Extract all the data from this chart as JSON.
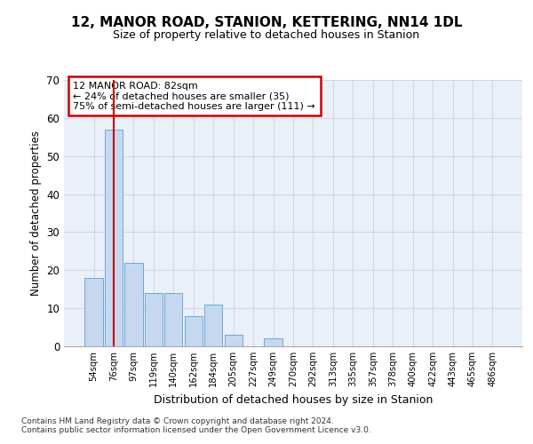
{
  "title": "12, MANOR ROAD, STANION, KETTERING, NN14 1DL",
  "subtitle": "Size of property relative to detached houses in Stanion",
  "xlabel": "Distribution of detached houses by size in Stanion",
  "ylabel": "Number of detached properties",
  "bar_labels": [
    "54sqm",
    "76sqm",
    "97sqm",
    "119sqm",
    "140sqm",
    "162sqm",
    "184sqm",
    "205sqm",
    "227sqm",
    "249sqm",
    "270sqm",
    "292sqm",
    "313sqm",
    "335sqm",
    "357sqm",
    "378sqm",
    "400sqm",
    "422sqm",
    "443sqm",
    "465sqm",
    "486sqm"
  ],
  "bar_values": [
    18,
    57,
    22,
    14,
    14,
    8,
    11,
    3,
    0,
    2,
    0,
    0,
    0,
    0,
    0,
    0,
    0,
    0,
    0,
    0,
    0
  ],
  "bar_color": "#c5d8f0",
  "bar_edge_color": "#6fa8d4",
  "property_line_x": 1,
  "ylim": [
    0,
    70
  ],
  "yticks": [
    0,
    10,
    20,
    30,
    40,
    50,
    60,
    70
  ],
  "annotation_text": "12 MANOR ROAD: 82sqm\n← 24% of detached houses are smaller (35)\n75% of semi-detached houses are larger (111) →",
  "annotation_box_color": "#ffffff",
  "annotation_box_edge": "#cc0000",
  "red_line_color": "#cc0000",
  "grid_color": "#d0d8e8",
  "bg_color": "#eaf0f8",
  "footnote1": "Contains HM Land Registry data © Crown copyright and database right 2024.",
  "footnote2": "Contains public sector information licensed under the Open Government Licence v3.0."
}
